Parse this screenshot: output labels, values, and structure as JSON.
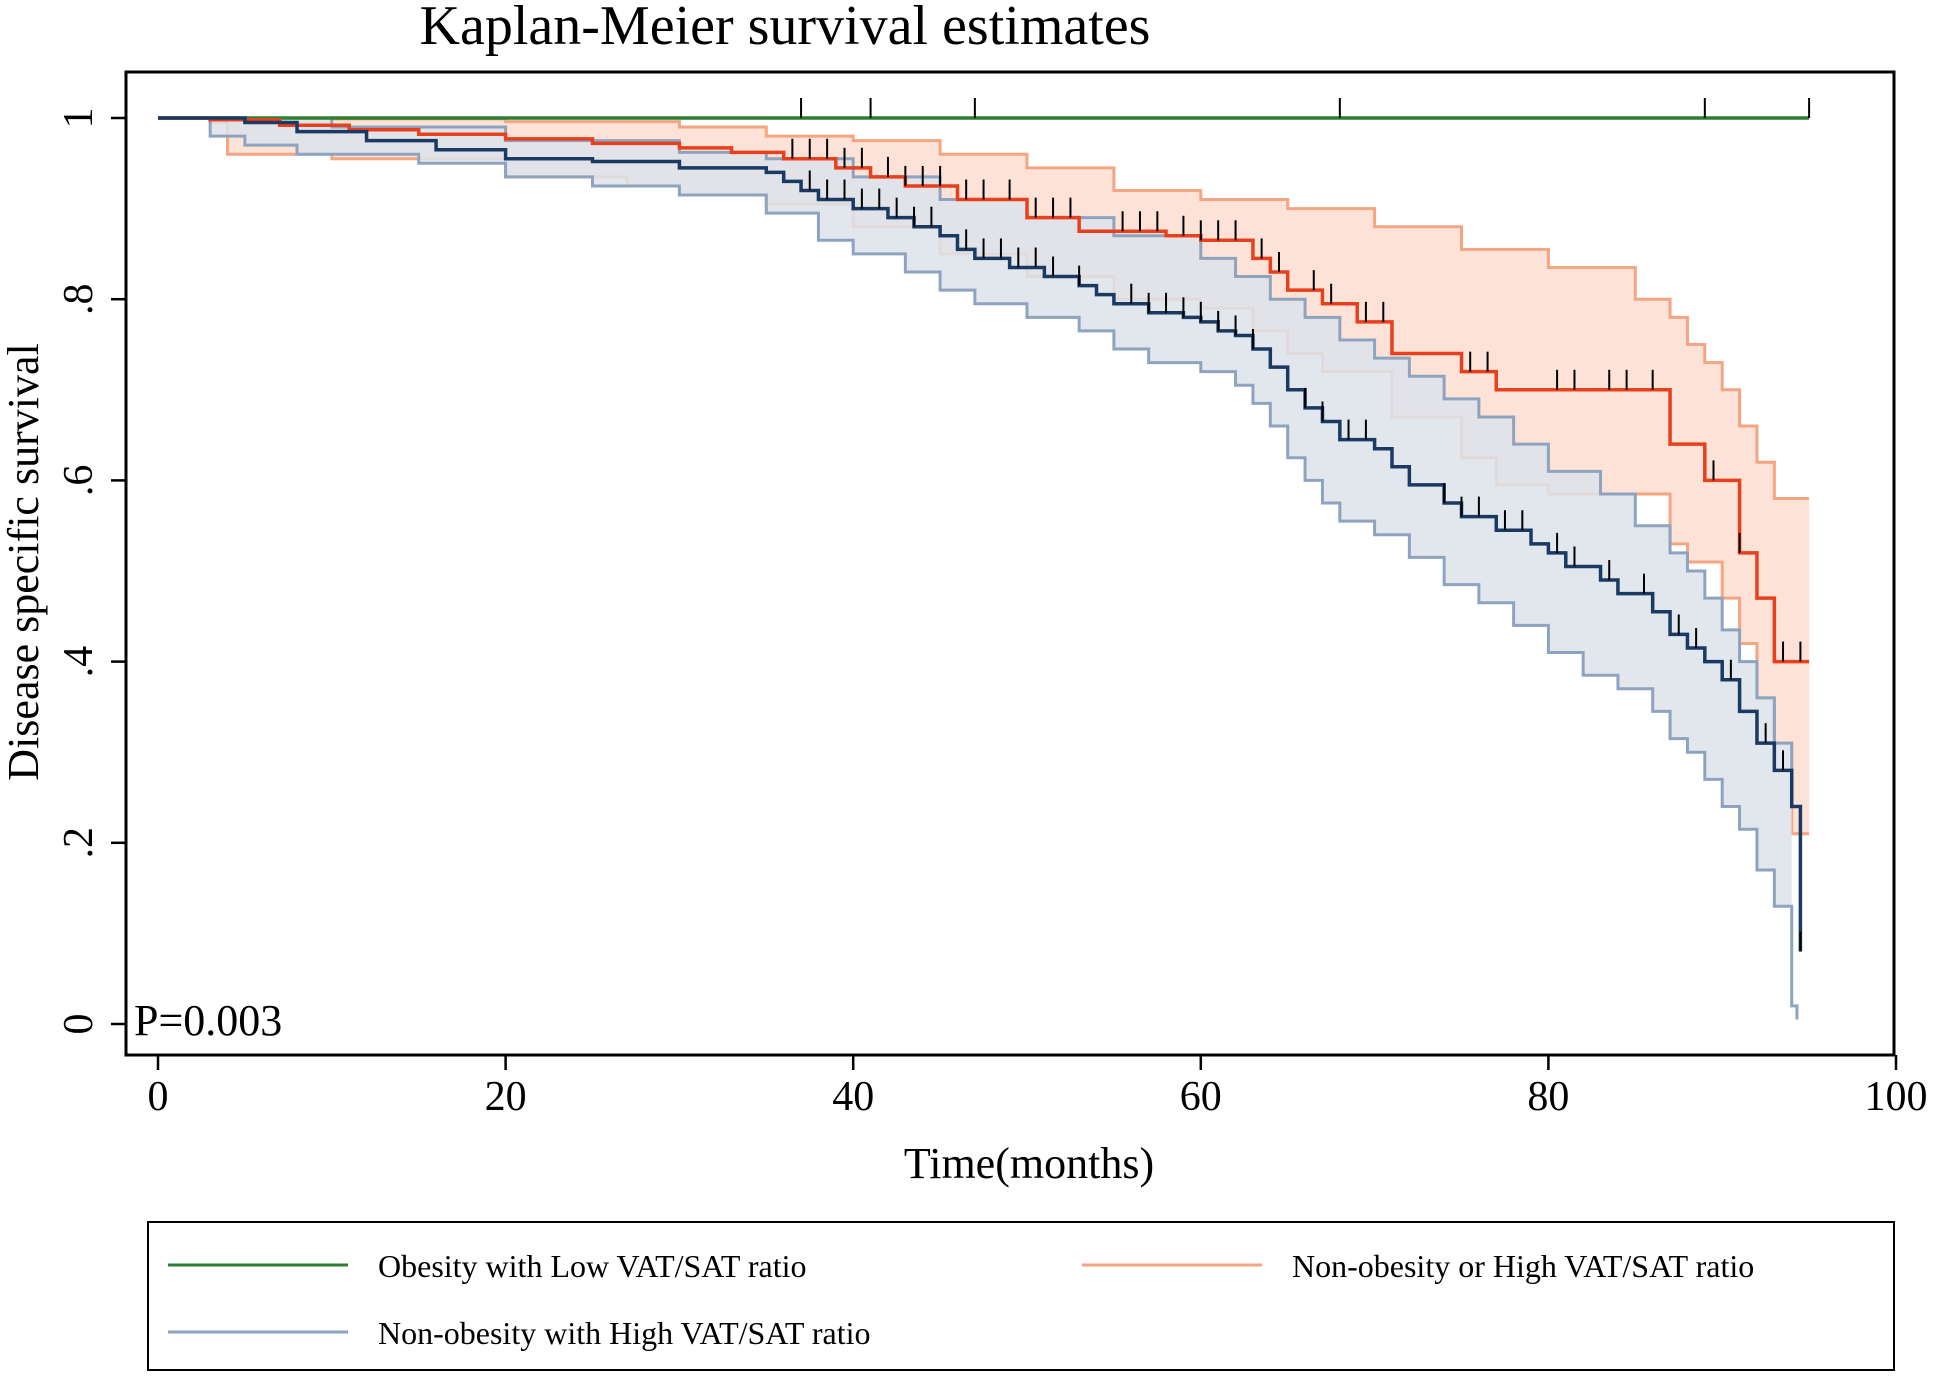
{
  "chart_data": {
    "type": "line",
    "subtype": "kaplan-meier",
    "title": "Kaplan-Meier survival estimates",
    "xlabel": "Time(months)",
    "ylabel": "Disease specific survival",
    "xlim": [
      0,
      100
    ],
    "ylim": [
      0,
      1
    ],
    "xticks": [
      0,
      20,
      40,
      60,
      80,
      100
    ],
    "yticks": [
      {
        "value": 0,
        "label": "0"
      },
      {
        "value": 0.2,
        "label": ".2"
      },
      {
        "value": 0.4,
        "label": ".4"
      },
      {
        "value": 0.6,
        "label": ".6"
      },
      {
        "value": 0.8,
        "label": ".8"
      },
      {
        "value": 1,
        "label": "1"
      }
    ],
    "grid": false,
    "annotation": "P=0.003",
    "legend_position": "bottom",
    "legend": [
      {
        "label": "Obesity with Low VAT/SAT ratio",
        "color": "#2e7d32"
      },
      {
        "label": "Non-obesity or High VAT/SAT ratio",
        "color": "#f4a582"
      },
      {
        "label": "Non-obesity with High VAT/SAT ratio",
        "color": "#8ea3bf"
      }
    ],
    "series": [
      {
        "name": "Obesity with Low VAT/SAT ratio",
        "color": "#2e7d32",
        "steps": [
          [
            0,
            1.0
          ],
          [
            95,
            1.0
          ]
        ],
        "censored": [
          37,
          41,
          47,
          68,
          89,
          95
        ]
      },
      {
        "name": "Non-obesity or High VAT/SAT ratio",
        "color": "#e8401c",
        "band_fill": "#fde0d3",
        "band_edge": "#f4a582",
        "steps": [
          [
            0,
            1.0
          ],
          [
            3,
            0.998
          ],
          [
            7,
            0.992
          ],
          [
            11,
            0.987
          ],
          [
            15,
            0.982
          ],
          [
            20,
            0.977
          ],
          [
            25,
            0.972
          ],
          [
            30,
            0.967
          ],
          [
            33,
            0.962
          ],
          [
            36,
            0.955
          ],
          [
            39,
            0.945
          ],
          [
            41,
            0.935
          ],
          [
            43,
            0.925
          ],
          [
            46,
            0.91
          ],
          [
            50,
            0.89
          ],
          [
            53,
            0.875
          ],
          [
            58,
            0.87
          ],
          [
            60,
            0.865
          ],
          [
            63,
            0.845
          ],
          [
            64,
            0.83
          ],
          [
            65,
            0.81
          ],
          [
            67,
            0.795
          ],
          [
            69,
            0.775
          ],
          [
            71,
            0.74
          ],
          [
            75,
            0.72
          ],
          [
            77,
            0.7
          ],
          [
            84,
            0.7
          ],
          [
            87,
            0.64
          ],
          [
            89,
            0.6
          ],
          [
            91,
            0.52
          ],
          [
            92,
            0.47
          ],
          [
            93,
            0.4
          ],
          [
            95,
            0.4
          ]
        ],
        "upper": [
          [
            0,
            1.0
          ],
          [
            3,
            1.0
          ],
          [
            10,
            0.999
          ],
          [
            20,
            0.996
          ],
          [
            30,
            0.99
          ],
          [
            35,
            0.98
          ],
          [
            40,
            0.975
          ],
          [
            45,
            0.96
          ],
          [
            50,
            0.945
          ],
          [
            55,
            0.92
          ],
          [
            60,
            0.91
          ],
          [
            65,
            0.9
          ],
          [
            70,
            0.88
          ],
          [
            75,
            0.855
          ],
          [
            80,
            0.835
          ],
          [
            85,
            0.8
          ],
          [
            87,
            0.78
          ],
          [
            88,
            0.75
          ],
          [
            89,
            0.73
          ],
          [
            90,
            0.7
          ],
          [
            91,
            0.66
          ],
          [
            92,
            0.62
          ],
          [
            93,
            0.58
          ],
          [
            95,
            0.58
          ]
        ],
        "lower": [
          [
            0,
            1.0
          ],
          [
            3,
            0.995
          ],
          [
            4,
            0.96
          ],
          [
            10,
            0.955
          ],
          [
            20,
            0.935
          ],
          [
            27,
            0.925
          ],
          [
            30,
            0.915
          ],
          [
            35,
            0.905
          ],
          [
            40,
            0.88
          ],
          [
            45,
            0.85
          ],
          [
            50,
            0.825
          ],
          [
            55,
            0.8
          ],
          [
            60,
            0.79
          ],
          [
            63,
            0.765
          ],
          [
            65,
            0.74
          ],
          [
            67,
            0.72
          ],
          [
            71,
            0.67
          ],
          [
            75,
            0.625
          ],
          [
            77,
            0.595
          ],
          [
            80,
            0.585
          ],
          [
            87,
            0.585
          ],
          [
            87,
            0.53
          ],
          [
            88,
            0.51
          ],
          [
            90,
            0.47
          ],
          [
            91,
            0.42
          ],
          [
            92,
            0.36
          ],
          [
            93,
            0.31
          ],
          [
            94,
            0.21
          ],
          [
            95,
            0.21
          ]
        ],
        "censored": [
          36.5,
          37.5,
          38.5,
          39.5,
          40.5,
          42,
          43,
          44,
          45,
          46.5,
          47.5,
          49,
          50.5,
          51.5,
          52.5,
          55.5,
          56.5,
          57.5,
          59,
          60,
          61,
          62,
          63.5,
          64.5,
          66.5,
          67.5,
          69.5,
          70.5,
          75.5,
          76.5,
          80.5,
          81.5,
          83.5,
          84.5,
          86,
          89.5,
          91,
          93.5,
          94.5
        ]
      },
      {
        "name": "Non-obesity with High VAT/SAT ratio",
        "color": "#1b3a63",
        "band_fill": "#dde3eb",
        "band_edge": "#8ea3bf",
        "steps": [
          [
            0,
            1.0
          ],
          [
            5,
            0.995
          ],
          [
            8,
            0.985
          ],
          [
            12,
            0.975
          ],
          [
            16,
            0.965
          ],
          [
            20,
            0.955
          ],
          [
            25,
            0.952
          ],
          [
            30,
            0.945
          ],
          [
            35,
            0.94
          ],
          [
            36,
            0.93
          ],
          [
            37,
            0.92
          ],
          [
            38,
            0.91
          ],
          [
            40,
            0.9
          ],
          [
            42,
            0.89
          ],
          [
            43.5,
            0.88
          ],
          [
            45,
            0.87
          ],
          [
            46,
            0.855
          ],
          [
            47,
            0.845
          ],
          [
            49,
            0.835
          ],
          [
            51,
            0.825
          ],
          [
            53,
            0.815
          ],
          [
            54,
            0.805
          ],
          [
            55,
            0.795
          ],
          [
            57,
            0.785
          ],
          [
            59,
            0.78
          ],
          [
            60,
            0.775
          ],
          [
            61,
            0.765
          ],
          [
            62,
            0.76
          ],
          [
            63,
            0.745
          ],
          [
            64,
            0.725
          ],
          [
            65,
            0.7
          ],
          [
            66,
            0.68
          ],
          [
            67,
            0.665
          ],
          [
            68,
            0.645
          ],
          [
            70,
            0.635
          ],
          [
            71,
            0.615
          ],
          [
            72,
            0.595
          ],
          [
            74,
            0.575
          ],
          [
            75,
            0.56
          ],
          [
            77,
            0.545
          ],
          [
            79,
            0.53
          ],
          [
            80,
            0.52
          ],
          [
            81,
            0.505
          ],
          [
            83,
            0.49
          ],
          [
            84,
            0.475
          ],
          [
            86,
            0.455
          ],
          [
            87,
            0.43
          ],
          [
            88,
            0.415
          ],
          [
            89,
            0.4
          ],
          [
            90,
            0.38
          ],
          [
            91,
            0.345
          ],
          [
            92,
            0.31
          ],
          [
            93,
            0.28
          ],
          [
            94,
            0.24
          ],
          [
            94.5,
            0.08
          ]
        ],
        "upper": [
          [
            0,
            1.0
          ],
          [
            3,
            1.0
          ],
          [
            10,
            0.99
          ],
          [
            20,
            0.975
          ],
          [
            30,
            0.962
          ],
          [
            35,
            0.955
          ],
          [
            40,
            0.935
          ],
          [
            45,
            0.91
          ],
          [
            50,
            0.89
          ],
          [
            55,
            0.87
          ],
          [
            60,
            0.845
          ],
          [
            62,
            0.825
          ],
          [
            64,
            0.8
          ],
          [
            66,
            0.78
          ],
          [
            68,
            0.755
          ],
          [
            70,
            0.735
          ],
          [
            72,
            0.715
          ],
          [
            74,
            0.69
          ],
          [
            76,
            0.67
          ],
          [
            78,
            0.64
          ],
          [
            80,
            0.61
          ],
          [
            83,
            0.585
          ],
          [
            85,
            0.55
          ],
          [
            87,
            0.52
          ],
          [
            88,
            0.5
          ],
          [
            89,
            0.47
          ],
          [
            90,
            0.435
          ],
          [
            91,
            0.4
          ],
          [
            92,
            0.36
          ],
          [
            93,
            0.31
          ],
          [
            94,
            0.27
          ]
        ],
        "lower": [
          [
            0,
            1.0
          ],
          [
            3,
            0.98
          ],
          [
            5,
            0.97
          ],
          [
            8,
            0.96
          ],
          [
            15,
            0.95
          ],
          [
            20,
            0.935
          ],
          [
            25,
            0.925
          ],
          [
            30,
            0.915
          ],
          [
            35,
            0.895
          ],
          [
            38,
            0.865
          ],
          [
            40,
            0.85
          ],
          [
            43,
            0.83
          ],
          [
            45,
            0.81
          ],
          [
            47,
            0.795
          ],
          [
            50,
            0.78
          ],
          [
            53,
            0.765
          ],
          [
            55,
            0.745
          ],
          [
            57,
            0.73
          ],
          [
            60,
            0.72
          ],
          [
            62,
            0.705
          ],
          [
            63,
            0.685
          ],
          [
            64,
            0.66
          ],
          [
            65,
            0.625
          ],
          [
            66,
            0.6
          ],
          [
            67,
            0.575
          ],
          [
            68,
            0.555
          ],
          [
            70,
            0.54
          ],
          [
            72,
            0.515
          ],
          [
            74,
            0.485
          ],
          [
            76,
            0.465
          ],
          [
            78,
            0.44
          ],
          [
            80,
            0.41
          ],
          [
            82,
            0.385
          ],
          [
            84,
            0.37
          ],
          [
            86,
            0.345
          ],
          [
            87,
            0.315
          ],
          [
            88,
            0.3
          ],
          [
            89,
            0.27
          ],
          [
            90,
            0.24
          ],
          [
            91,
            0.215
          ],
          [
            92,
            0.17
          ],
          [
            93,
            0.13
          ],
          [
            94,
            0.02
          ],
          [
            94.3,
            0.005
          ]
        ],
        "censored": [
          37.5,
          38.5,
          39.5,
          40.5,
          41.5,
          42.5,
          43.5,
          44.5,
          46.5,
          47.5,
          48.5,
          49.5,
          50.5,
          51.5,
          53,
          56,
          57,
          58,
          59,
          60,
          61,
          62,
          63,
          66,
          67,
          68.5,
          69.5,
          74,
          75,
          76,
          77.5,
          78.5,
          80.5,
          81.5,
          83.5,
          85.5,
          87.5,
          88.5,
          90.5,
          92.5,
          93.5,
          94.5
        ]
      }
    ]
  }
}
